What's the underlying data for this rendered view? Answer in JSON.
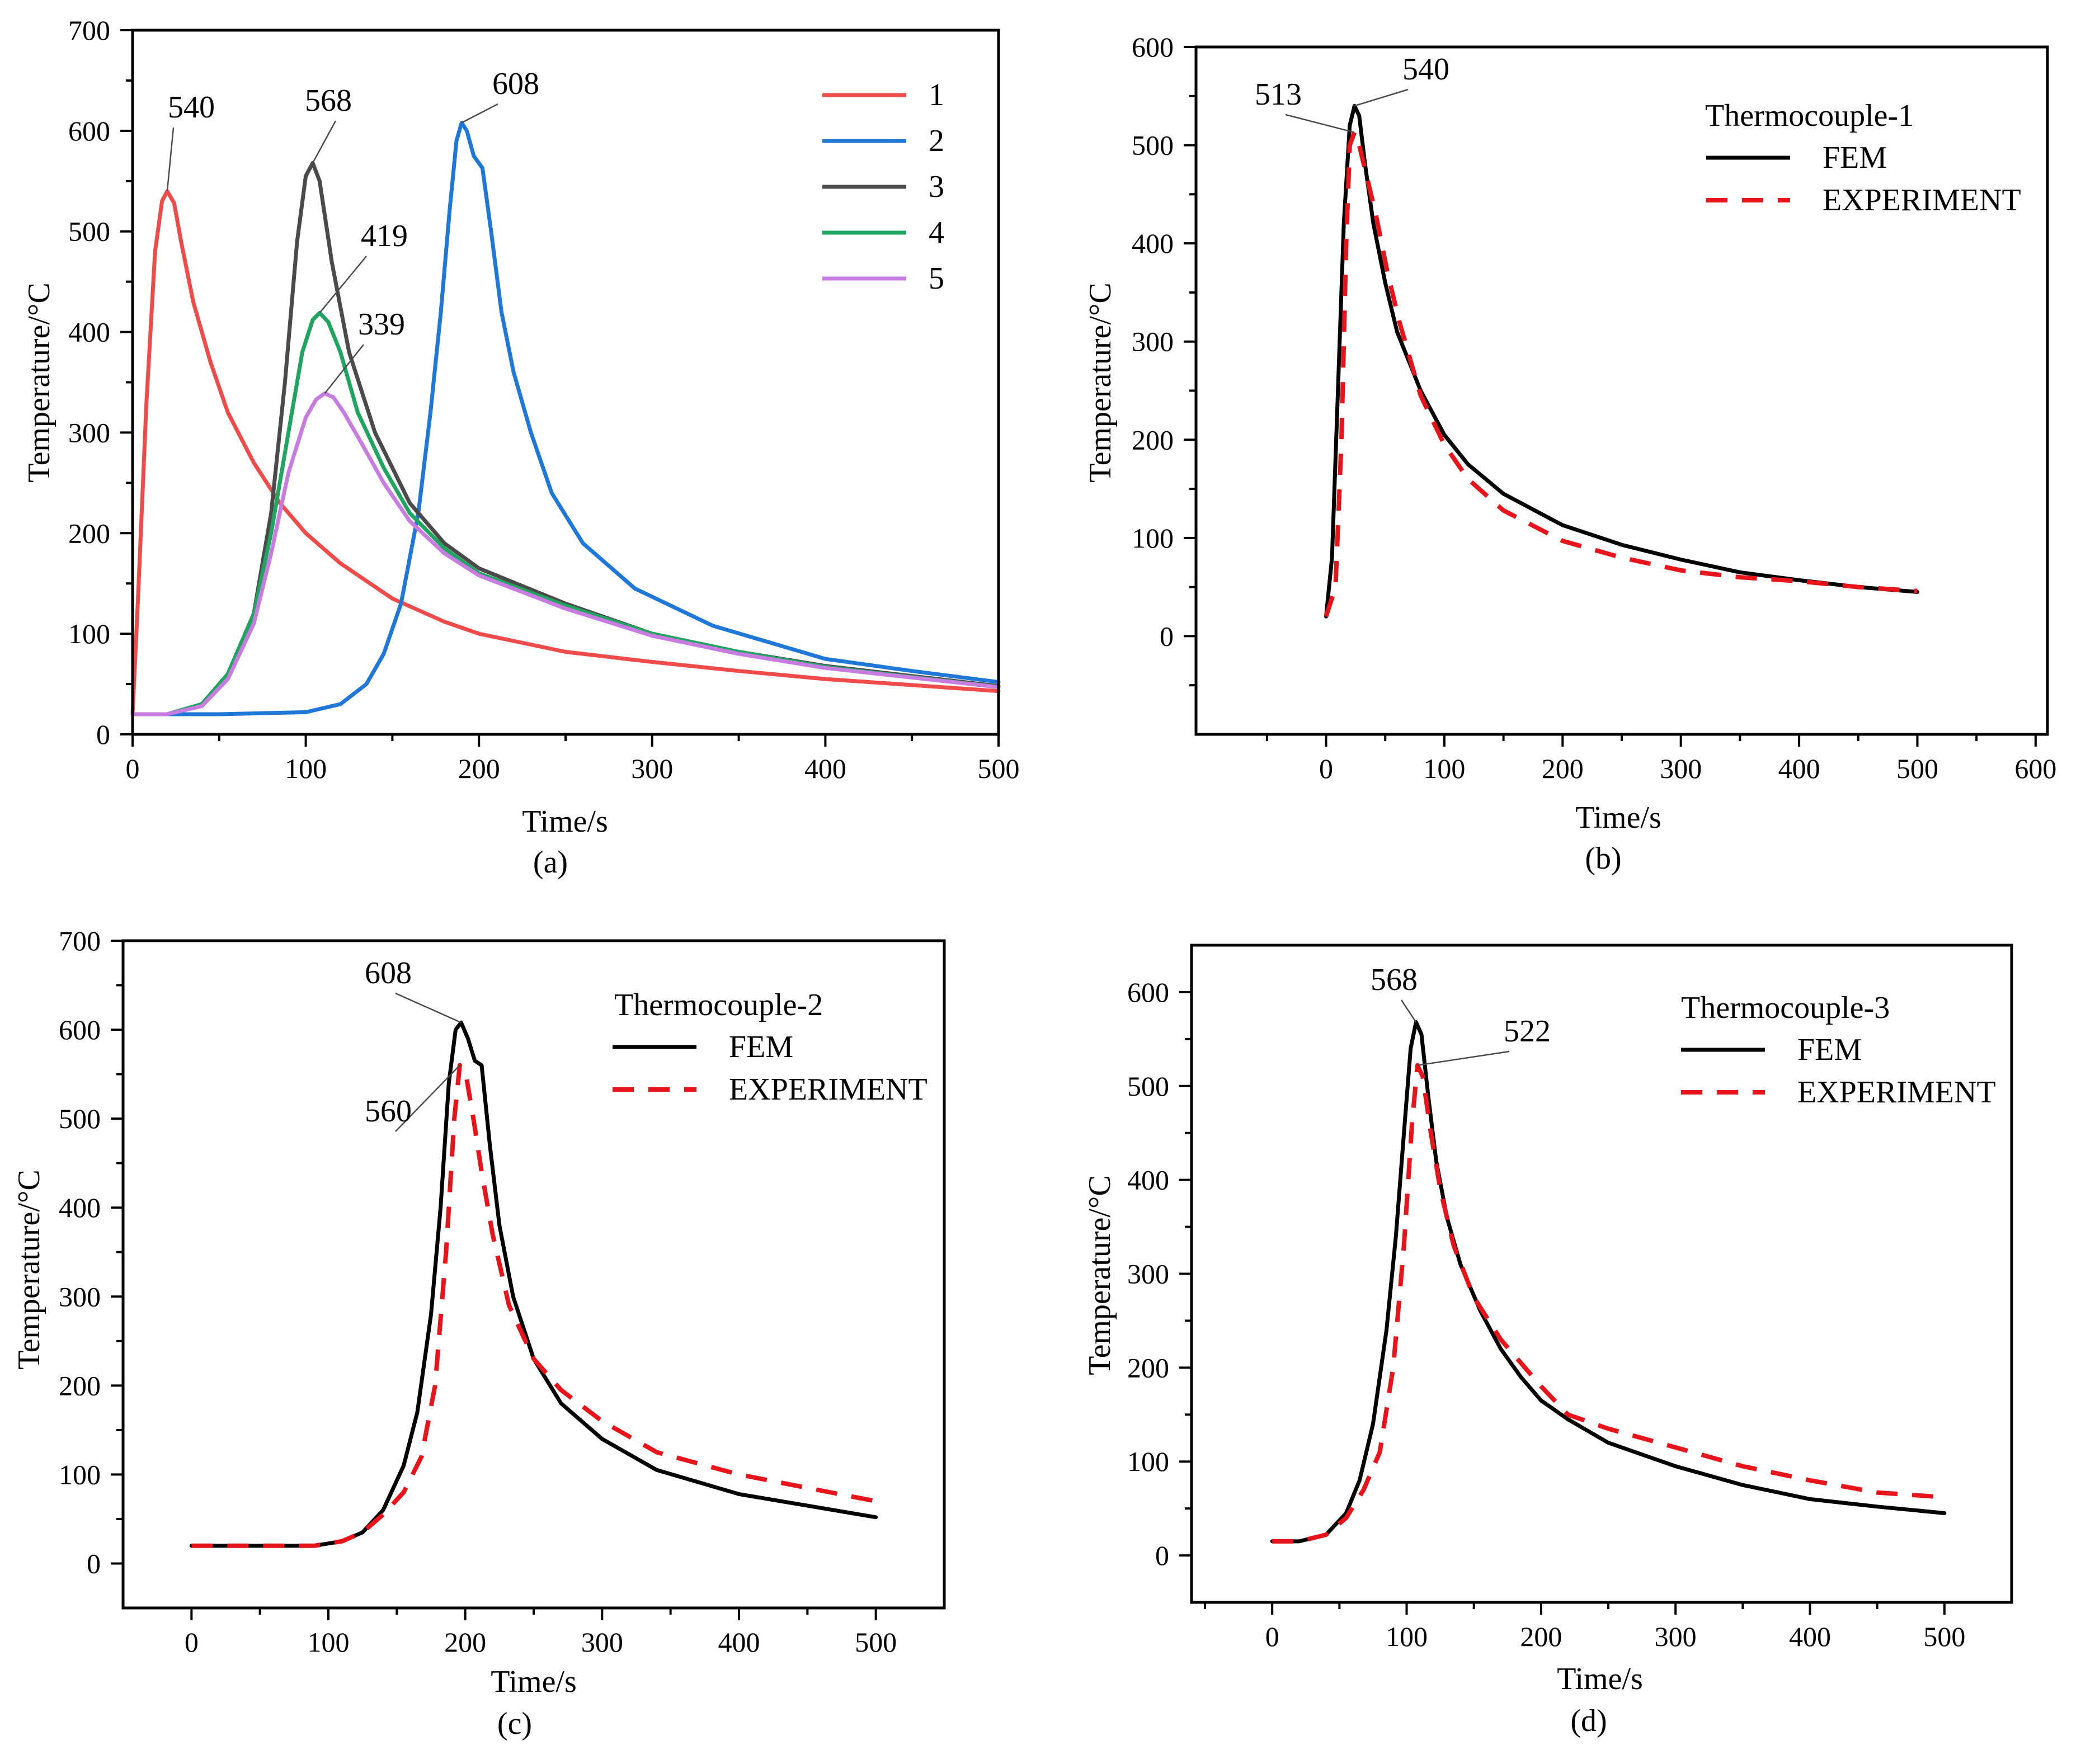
{
  "colors": {
    "series1": "#EF4B4B",
    "series2": "#1F78D8",
    "series3": "#4A4A4A",
    "series4": "#1FA560",
    "series5": "#C77CDF",
    "fem": "#000000",
    "experiment": "#E8141B"
  },
  "chart_data": [
    {
      "id": "a",
      "type": "line",
      "panel_label": "(a)",
      "xlabel": "Time/s",
      "ylabel": "Temperature/°C",
      "xlim": [
        0,
        500
      ],
      "ylim": [
        0,
        700
      ],
      "xticks": [
        0,
        100,
        200,
        300,
        400,
        500
      ],
      "yticks": [
        0,
        100,
        200,
        300,
        400,
        500,
        600,
        700
      ],
      "legend_position": "top-right",
      "series": [
        {
          "name": "1",
          "color": "series1",
          "dash": "solid",
          "x": [
            0,
            3,
            8,
            13,
            17,
            20,
            24,
            28,
            35,
            45,
            55,
            70,
            85,
            100,
            120,
            150,
            180,
            200,
            250,
            300,
            350,
            400,
            450,
            500
          ],
          "y": [
            20,
            130,
            330,
            480,
            530,
            540,
            528,
            490,
            430,
            370,
            320,
            270,
            230,
            200,
            170,
            135,
            112,
            100,
            82,
            72,
            63,
            55,
            49,
            43
          ]
        },
        {
          "name": "2",
          "color": "series2",
          "dash": "solid",
          "x": [
            0,
            50,
            100,
            120,
            135,
            145,
            155,
            165,
            172,
            178,
            183,
            187,
            190,
            193,
            197,
            202,
            207,
            213,
            220,
            230,
            242,
            260,
            290,
            335,
            400,
            450,
            500
          ],
          "y": [
            20,
            20,
            22,
            30,
            50,
            80,
            130,
            220,
            320,
            420,
            520,
            590,
            608,
            600,
            575,
            563,
            500,
            420,
            360,
            300,
            240,
            190,
            145,
            108,
            75,
            63,
            52
          ]
        },
        {
          "name": "3",
          "color": "series3",
          "dash": "solid",
          "x": [
            0,
            20,
            40,
            55,
            70,
            80,
            88,
            95,
            100,
            104,
            108,
            115,
            125,
            140,
            160,
            180,
            200,
            250,
            300,
            350,
            400,
            500
          ],
          "y": [
            20,
            20,
            30,
            60,
            120,
            220,
            350,
            490,
            555,
            568,
            550,
            470,
            380,
            300,
            230,
            190,
            165,
            130,
            100,
            82,
            68,
            48
          ]
        },
        {
          "name": "4",
          "color": "series4",
          "dash": "solid",
          "x": [
            0,
            20,
            40,
            55,
            70,
            80,
            90,
            98,
            104,
            108,
            113,
            120,
            130,
            145,
            160,
            180,
            200,
            250,
            300,
            350,
            400,
            500
          ],
          "y": [
            20,
            20,
            30,
            60,
            120,
            200,
            300,
            380,
            412,
            419,
            410,
            380,
            320,
            265,
            220,
            185,
            160,
            128,
            100,
            82,
            67,
            47
          ]
        },
        {
          "name": "5",
          "color": "series5",
          "dash": "solid",
          "x": [
            0,
            20,
            40,
            55,
            70,
            80,
            90,
            100,
            106,
            111,
            116,
            122,
            132,
            145,
            160,
            180,
            200,
            250,
            300,
            350,
            400,
            500
          ],
          "y": [
            20,
            20,
            28,
            55,
            110,
            180,
            260,
            315,
            333,
            339,
            335,
            320,
            290,
            250,
            212,
            180,
            158,
            125,
            98,
            80,
            66,
            47
          ]
        }
      ],
      "annotations": [
        {
          "text": "540",
          "x": 20,
          "y": 540
        },
        {
          "text": "568",
          "x": 104,
          "y": 568
        },
        {
          "text": "608",
          "x": 190,
          "y": 608
        },
        {
          "text": "419",
          "x": 108,
          "y": 419
        },
        {
          "text": "339",
          "x": 111,
          "y": 339
        }
      ]
    },
    {
      "id": "b",
      "type": "line",
      "panel_label": "(b)",
      "xlabel": "Time/s",
      "ylabel": "Temperature/°C",
      "xlim": [
        -110,
        610
      ],
      "ylim": [
        -100,
        600
      ],
      "xticks": [
        0,
        100,
        200,
        300,
        400,
        500,
        600
      ],
      "yticks": [
        0,
        100,
        200,
        300,
        400,
        500,
        600
      ],
      "legend_title": "Thermocouple-1",
      "legend_position": "top-right",
      "series": [
        {
          "name": "FEM",
          "color": "fem",
          "dash": "solid",
          "x": [
            0,
            5,
            10,
            15,
            20,
            24,
            28,
            33,
            40,
            50,
            60,
            80,
            100,
            120,
            150,
            200,
            250,
            300,
            350,
            400,
            450,
            500
          ],
          "y": [
            20,
            80,
            250,
            420,
            520,
            540,
            530,
            480,
            420,
            360,
            310,
            250,
            205,
            175,
            145,
            113,
            93,
            78,
            65,
            57,
            50,
            45
          ]
        },
        {
          "name": "EXPERIMENT",
          "color": "experiment",
          "dash": "dashed",
          "x": [
            0,
            8,
            13,
            17,
            20,
            24,
            28,
            34,
            42,
            52,
            62,
            80,
            100,
            120,
            150,
            200,
            250,
            300,
            350,
            400,
            450,
            500
          ],
          "y": [
            20,
            50,
            200,
            400,
            500,
            513,
            500,
            470,
            430,
            370,
            320,
            245,
            195,
            160,
            128,
            97,
            80,
            67,
            60,
            56,
            50,
            46
          ]
        }
      ],
      "annotations": [
        {
          "text": "513",
          "x": 24,
          "y": 513
        },
        {
          "text": "540",
          "x": 24,
          "y": 540
        }
      ]
    },
    {
      "id": "c",
      "type": "line",
      "panel_label": "(c)",
      "xlabel": "Time/s",
      "ylabel": "Temperature/°C",
      "xlim": [
        -50,
        550
      ],
      "ylim": [
        -50,
        700
      ],
      "xticks": [
        0,
        100,
        200,
        300,
        400,
        500
      ],
      "yticks": [
        0,
        100,
        200,
        300,
        400,
        500,
        600,
        700
      ],
      "legend_title": "Thermocouple-2",
      "legend_position": "top-right",
      "series": [
        {
          "name": "FEM",
          "color": "fem",
          "dash": "solid",
          "x": [
            0,
            50,
            90,
            110,
            125,
            140,
            155,
            165,
            175,
            182,
            188,
            193,
            197,
            202,
            207,
            212,
            218,
            225,
            235,
            250,
            270,
            300,
            340,
            400,
            450,
            500
          ],
          "y": [
            20,
            20,
            20,
            25,
            35,
            60,
            110,
            170,
            280,
            400,
            540,
            600,
            608,
            590,
            565,
            560,
            470,
            380,
            300,
            230,
            180,
            140,
            105,
            78,
            65,
            52
          ]
        },
        {
          "name": "EXPERIMENT",
          "color": "experiment",
          "dash": "dashed",
          "x": [
            0,
            50,
            90,
            110,
            125,
            140,
            155,
            168,
            178,
            186,
            192,
            196,
            201,
            206,
            212,
            220,
            232,
            250,
            270,
            300,
            340,
            400,
            450,
            500
          ],
          "y": [
            20,
            20,
            20,
            25,
            35,
            55,
            80,
            120,
            200,
            350,
            500,
            560,
            545,
            500,
            440,
            370,
            290,
            230,
            195,
            160,
            125,
            100,
            85,
            70
          ]
        }
      ],
      "annotations": [
        {
          "text": "608",
          "x": 197,
          "y": 608
        },
        {
          "text": "560",
          "x": 196,
          "y": 560
        }
      ]
    },
    {
      "id": "d",
      "type": "line",
      "panel_label": "(d)",
      "xlabel": "Time/s",
      "ylabel": "Temperature/°C",
      "xlim": [
        -60,
        550
      ],
      "ylim": [
        -50,
        650
      ],
      "xticks": [
        0,
        100,
        200,
        300,
        400,
        500
      ],
      "yticks": [
        0,
        100,
        200,
        300,
        400,
        500,
        600
      ],
      "legend_title": "Thermocouple-3",
      "legend_position": "top-right",
      "series": [
        {
          "name": "FEM",
          "color": "fem",
          "dash": "solid",
          "x": [
            0,
            20,
            40,
            55,
            65,
            75,
            85,
            92,
            98,
            103,
            107,
            111,
            116,
            122,
            130,
            140,
            155,
            170,
            185,
            200,
            220,
            250,
            300,
            350,
            400,
            450,
            500
          ],
          "y": [
            15,
            15,
            22,
            45,
            80,
            140,
            240,
            340,
            450,
            540,
            568,
            555,
            490,
            420,
            360,
            310,
            260,
            220,
            190,
            165,
            145,
            120,
            95,
            75,
            60,
            52,
            45
          ]
        },
        {
          "name": "EXPERIMENT",
          "color": "experiment",
          "dash": "dashed",
          "x": [
            0,
            20,
            40,
            55,
            68,
            80,
            90,
            98,
            104,
            108,
            112,
            118,
            125,
            135,
            150,
            170,
            200,
            220,
            250,
            300,
            350,
            400,
            450,
            500
          ],
          "y": [
            15,
            15,
            22,
            40,
            70,
            110,
            200,
            330,
            460,
            522,
            510,
            450,
            390,
            330,
            275,
            230,
            180,
            150,
            135,
            115,
            95,
            80,
            67,
            62
          ]
        }
      ],
      "annotations": [
        {
          "text": "568",
          "x": 107,
          "y": 568
        },
        {
          "text": "522",
          "x": 108,
          "y": 522
        }
      ]
    }
  ]
}
